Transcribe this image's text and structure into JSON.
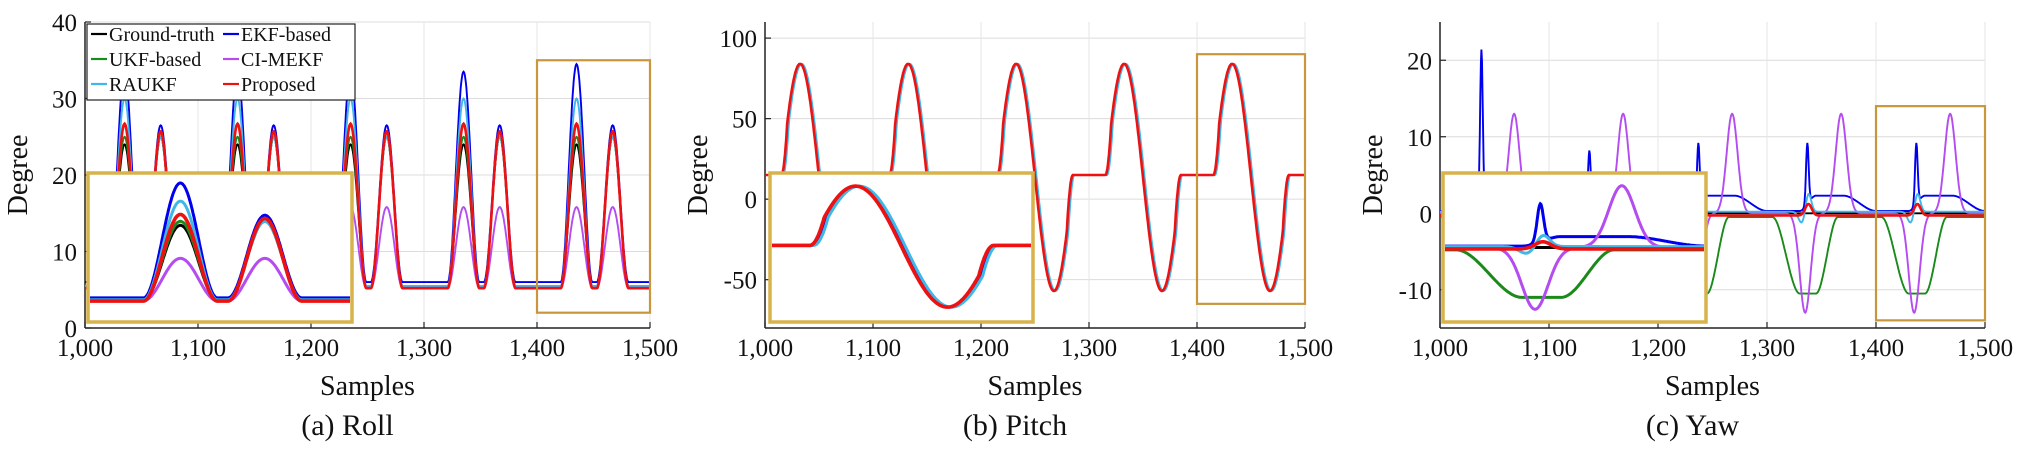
{
  "colors": {
    "ground_truth": "#000000",
    "ekf": "#0000ee",
    "ukf": "#1a8a1a",
    "ci_mekf": "#b44cf0",
    "raukf": "#3fb8e8",
    "proposed": "#ee1111",
    "zoom_box": "#c8963c",
    "inset_box": "#d8b24a"
  },
  "chart_data": [
    {
      "type": "line",
      "caption": "(a) Roll",
      "xlabel": "Samples",
      "ylabel": "Degree",
      "xlim": [
        1000,
        1500
      ],
      "ylim": [
        0,
        40
      ],
      "xticks": [
        1000,
        1100,
        1200,
        1300,
        1400,
        1500
      ],
      "xtick_labels": [
        "1,000",
        "1,100",
        "1,200",
        "1,300",
        "1,400",
        "1,500"
      ],
      "yticks": [
        0,
        10,
        20,
        30,
        40
      ],
      "ytick_labels": [
        "0",
        "10",
        "20",
        "30",
        "40"
      ],
      "grid": true,
      "legend": {
        "position": "top-left",
        "entries": [
          "Ground-truth",
          "EKF-based",
          "UKF-based",
          "CI-MEKF",
          "RAUKF",
          "Proposed"
        ]
      },
      "zoom_region": {
        "x": [
          1400,
          1500
        ],
        "y": [
          2,
          35
        ]
      },
      "baseline": 5.5,
      "peak_centers": [
        1035,
        1067,
        1135,
        1167,
        1235,
        1267,
        1335,
        1367,
        1435,
        1467
      ],
      "series": [
        {
          "name": "Ground-truth",
          "color_key": "ground_truth",
          "peaks": [
            24,
            25,
            24,
            25,
            24,
            25,
            24,
            25,
            24,
            25
          ]
        },
        {
          "name": "EKF-based",
          "color_key": "ekf",
          "peaks": [
            33,
            26,
            33,
            26,
            33,
            26,
            33,
            26,
            34,
            26
          ]
        },
        {
          "name": "UKF-based",
          "color_key": "ukf",
          "peaks": [
            25,
            25,
            25,
            25,
            25,
            25,
            25,
            25,
            25,
            25
          ]
        },
        {
          "name": "CI-MEKF",
          "color_key": "ci_mekf",
          "peaks": [
            16,
            16,
            16,
            16,
            16,
            16,
            16,
            16,
            16,
            16
          ]
        },
        {
          "name": "RAUKF",
          "color_key": "raukf",
          "peaks": [
            30,
            25,
            30,
            25,
            30,
            25,
            30,
            25,
            30,
            25
          ]
        },
        {
          "name": "Proposed",
          "color_key": "proposed",
          "peaks": [
            27,
            26,
            27,
            26,
            27,
            26,
            27,
            26,
            27,
            26
          ]
        }
      ]
    },
    {
      "type": "line",
      "caption": "(b) Pitch",
      "xlabel": "Samples",
      "ylabel": "Degree",
      "xlim": [
        1000,
        1500
      ],
      "ylim": [
        -80,
        110
      ],
      "xticks": [
        1000,
        1100,
        1200,
        1300,
        1400,
        1500
      ],
      "xtick_labels": [
        "1,000",
        "1,100",
        "1,200",
        "1,300",
        "1,400",
        "1,500"
      ],
      "yticks": [
        -50,
        0,
        50,
        100
      ],
      "ytick_labels": [
        "-50",
        "0",
        "50",
        "100"
      ],
      "grid": true,
      "zoom_region": {
        "x": [
          1400,
          1500
        ],
        "y": [
          -65,
          90
        ]
      },
      "baseline": 15,
      "cycle_starts": [
        1015,
        1115,
        1215,
        1315,
        1415
      ],
      "max": 84,
      "min": -57,
      "series": [
        {
          "name": "EKF-based",
          "color_key": "ekf"
        },
        {
          "name": "RAUKF",
          "color_key": "raukf"
        },
        {
          "name": "Proposed",
          "color_key": "proposed"
        }
      ]
    },
    {
      "type": "line",
      "caption": "(c) Yaw",
      "xlabel": "Samples",
      "ylabel": "Degree",
      "xlim": [
        1000,
        1500
      ],
      "ylim": [
        -15,
        25
      ],
      "xticks": [
        1000,
        1100,
        1200,
        1300,
        1400,
        1500
      ],
      "xtick_labels": [
        "1,000",
        "1,100",
        "1,200",
        "1,300",
        "1,400",
        "1,500"
      ],
      "yticks": [
        -10,
        0,
        10,
        20
      ],
      "ytick_labels": [
        "-10",
        "0",
        "10",
        "20"
      ],
      "grid": true,
      "zoom_region": {
        "x": [
          1400,
          1500
        ],
        "y": [
          -14,
          14
        ]
      },
      "series": [
        {
          "name": "Ground-truth",
          "color_key": "ground_truth",
          "level": 0
        },
        {
          "name": "EKF-based",
          "color_key": "ekf",
          "spikes": [
            [
              1038,
              20
            ],
            [
              1137,
              7
            ],
            [
              1237,
              8
            ],
            [
              1337,
              8
            ],
            [
              1437,
              8
            ]
          ],
          "drift_peak": 2
        },
        {
          "name": "UKF-based",
          "color_key": "ukf",
          "min": -10.5,
          "level": -0.5
        },
        {
          "name": "CI-MEKF",
          "color_key": "ci_mekf",
          "peak": 13,
          "trough": -13
        },
        {
          "name": "RAUKF",
          "color_key": "raukf",
          "dip": -1.5,
          "bump": 2.5
        },
        {
          "name": "Proposed",
          "color_key": "proposed",
          "bump": 1.5,
          "level": -0.3
        }
      ]
    }
  ]
}
